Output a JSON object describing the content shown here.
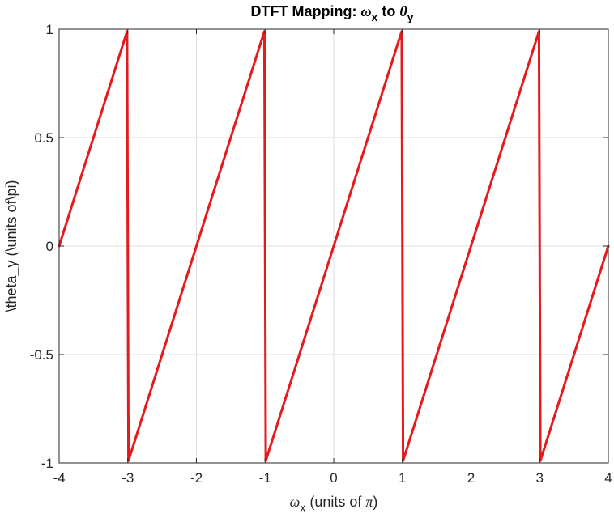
{
  "chart_data": {
    "type": "line",
    "title": {
      "prefix": "DTFT Mapping: ",
      "x_symbol": "ω",
      "x_sub": "x",
      "mid": " to ",
      "y_symbol": "θ",
      "y_sub": "y"
    },
    "xlabel": {
      "symbol": "ω",
      "sub": "x",
      "text": " (units of ",
      "pi": "π",
      "close": ")"
    },
    "ylabel": "\\theta_y (\\units of\\pi)",
    "xlim": [
      -4,
      4
    ],
    "ylim": [
      -1,
      1
    ],
    "xticks": [
      -4,
      -3,
      -2,
      -1,
      0,
      1,
      2,
      3,
      4
    ],
    "xtick_labels": [
      "-4",
      "-3",
      "-2",
      "-1",
      "0",
      "1",
      "2",
      "3",
      "4"
    ],
    "yticks": [
      -1,
      -0.5,
      0,
      0.5,
      1
    ],
    "ytick_labels": [
      "-1",
      "-0.5",
      "0",
      "0.5",
      "1"
    ],
    "grid": true,
    "series": [
      {
        "color": "#e41a1c",
        "x": [
          -4,
          -3.01,
          -2.99,
          -1.01,
          -0.99,
          0.99,
          1.01,
          2.99,
          3.01,
          4
        ],
        "y": [
          0,
          0.99,
          -0.99,
          0.99,
          -0.99,
          0.99,
          -0.99,
          0.99,
          -0.99,
          0
        ]
      }
    ]
  }
}
